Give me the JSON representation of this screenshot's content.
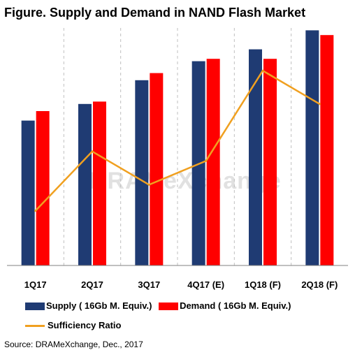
{
  "title": "Figure. Supply and Demand in NAND Flash Market",
  "source": "Source: DRAMeXchange, Dec., 2017",
  "watermark": "DRAMeXchange",
  "chart_data": {
    "type": "bar",
    "categories": [
      "1Q17",
      "2Q17",
      "3Q17",
      "4Q17 (E)",
      "1Q18 (F)",
      "2Q18 (F)"
    ],
    "ylim": [
      0,
      100
    ],
    "series": [
      {
        "name": "Supply ( 16Gb M. Equiv.)",
        "type": "bar",
        "color": "#1f3b73",
        "values": [
          61,
          68,
          78,
          86,
          91,
          99
        ]
      },
      {
        "name": "Demand ( 16Gb M. Equiv.)",
        "type": "bar",
        "color": "#ff0000",
        "values": [
          65,
          69,
          81,
          87,
          87,
          97
        ]
      },
      {
        "name": "Sufficiency Ratio",
        "type": "line",
        "color": "#f0a020",
        "values": [
          23,
          48,
          34,
          44,
          82,
          68
        ]
      }
    ],
    "grid": "vertical-dashed",
    "legend": "bottom"
  }
}
